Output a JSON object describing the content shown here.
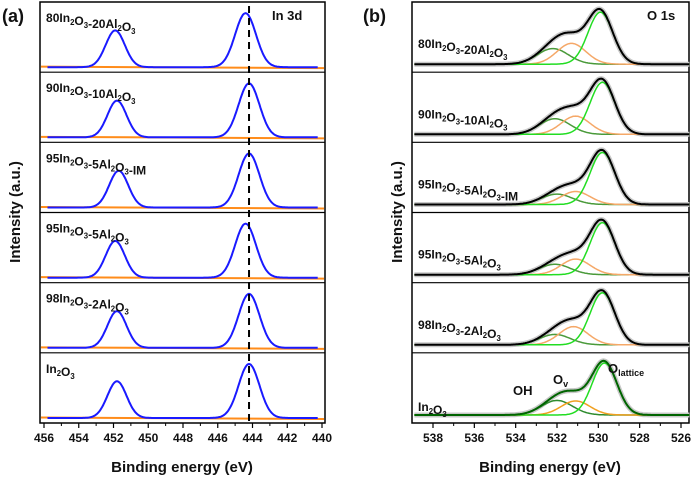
{
  "chart_data": [
    {
      "type": "line",
      "panel_label": "(a)",
      "title": "In 3d",
      "xlabel": "Binding energy (eV)",
      "ylabel": "Intensity (a.u.)",
      "xlim": [
        456,
        440
      ],
      "xticks": [
        "456",
        "454",
        "452",
        "450",
        "448",
        "446",
        "444",
        "442",
        "440"
      ],
      "reference_line_eV": 444.2,
      "series": [
        {
          "name": "80In2O3-20Al2O3",
          "peaks_eV": [
            451.9,
            444.4
          ],
          "color": "#1a1aff",
          "baseline_color": "#ff8c1a"
        },
        {
          "name": "90In2O3-10Al2O3",
          "peaks_eV": [
            451.8,
            444.2
          ],
          "color": "#1a1aff",
          "baseline_color": "#ff8c1a"
        },
        {
          "name": "95In2O3-5Al2O3-IM",
          "peaks_eV": [
            451.7,
            444.2
          ],
          "color": "#1a1aff",
          "baseline_color": "#ff8c1a"
        },
        {
          "name": "95In2O3-5Al2O3",
          "peaks_eV": [
            451.9,
            444.4
          ],
          "color": "#1a1aff",
          "baseline_color": "#ff8c1a"
        },
        {
          "name": "98In2O3-2Al2O3",
          "peaks_eV": [
            451.8,
            444.2
          ],
          "color": "#1a1aff",
          "baseline_color": "#ff8c1a"
        },
        {
          "name": "In2O3",
          "peaks_eV": [
            451.8,
            444.2
          ],
          "color": "#1a1aff",
          "baseline_color": "#ff8c1a"
        }
      ]
    },
    {
      "type": "line",
      "panel_label": "(b)",
      "title": "O 1s",
      "xlabel": "Binding energy (eV)",
      "ylabel": "Intensity (a.u.)",
      "xlim": [
        539,
        525.5
      ],
      "xticks": [
        "538",
        "536",
        "534",
        "532",
        "530",
        "528",
        "526"
      ],
      "components": {
        "OH": "OH",
        "Ov": "O",
        "Ov_sub": "v",
        "Olattice": "O",
        "Olattice_sub": "lattice"
      },
      "series": [
        {
          "name": "80In2O3-20Al2O3",
          "envelope_color": "#000000",
          "OH_eV": 532.2,
          "Ov_eV": 531.3,
          "Olattice_eV": 529.9,
          "ratios": [
            0.3,
            0.4,
            1.0
          ]
        },
        {
          "name": "90In2O3-10Al2O3",
          "envelope_color": "#000000",
          "OH_eV": 532.1,
          "Ov_eV": 531.1,
          "Olattice_eV": 529.8,
          "ratios": [
            0.3,
            0.35,
            1.0
          ]
        },
        {
          "name": "95In2O3-5Al2O3-IM",
          "envelope_color": "#000000",
          "OH_eV": 532.0,
          "Ov_eV": 531.1,
          "Olattice_eV": 529.8,
          "ratios": [
            0.2,
            0.25,
            1.0
          ]
        },
        {
          "name": "95In2O3-5Al2O3",
          "envelope_color": "#000000",
          "OH_eV": 532.1,
          "Ov_eV": 531.1,
          "Olattice_eV": 529.8,
          "ratios": [
            0.2,
            0.3,
            1.0
          ]
        },
        {
          "name": "98In2O3-2Al2O3",
          "envelope_color": "#000000",
          "OH_eV": 532.1,
          "Ov_eV": 531.2,
          "Olattice_eV": 529.8,
          "ratios": [
            0.2,
            0.35,
            1.0
          ]
        },
        {
          "name": "In2O3",
          "envelope_color": "#006400",
          "OH_eV": 532.0,
          "Ov_eV": 531.1,
          "Olattice_eV": 529.7,
          "ratios": [
            0.28,
            0.27,
            1.0
          ]
        }
      ]
    }
  ]
}
